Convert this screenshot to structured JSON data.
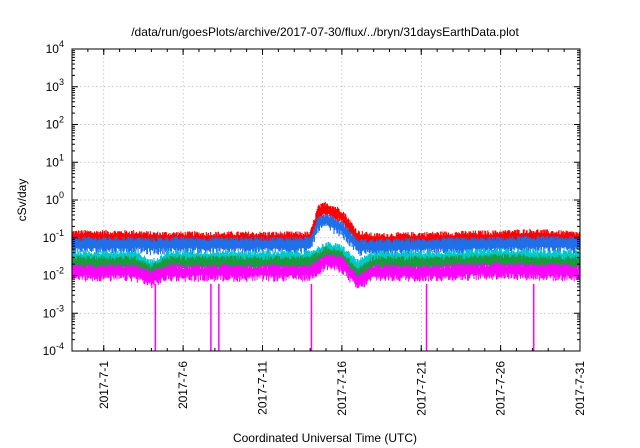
{
  "chart_data": {
    "type": "line",
    "title": "/data/run/goesPlots/archive/2017-07-30/flux/../bryn/31daysEarthData.plot",
    "xlabel": "Coordinated Universal Time (UTC)",
    "ylabel": "cSv/day",
    "x_type": "date",
    "xlim": [
      "2017-06-29",
      "2017-07-31"
    ],
    "ylim": [
      0.0001,
      10000
    ],
    "yscale": "log",
    "grid": true,
    "legend": "none",
    "x_ticks": [
      {
        "date": "2017-07-01",
        "label": "2017-7-1"
      },
      {
        "date": "2017-07-06",
        "label": "2017-7-6"
      },
      {
        "date": "2017-07-11",
        "label": "2017-7-11"
      },
      {
        "date": "2017-07-16",
        "label": "2017-7-16"
      },
      {
        "date": "2017-07-21",
        "label": "2017-7-21"
      },
      {
        "date": "2017-07-26",
        "label": "2017-7-26"
      },
      {
        "date": "2017-07-31",
        "label": "2017-7-31"
      }
    ],
    "y_ticks": [
      {
        "value": 0.0001,
        "base": "10",
        "exp": "-4"
      },
      {
        "value": 0.001,
        "base": "10",
        "exp": "-3"
      },
      {
        "value": 0.01,
        "base": "10",
        "exp": "-2"
      },
      {
        "value": 0.1,
        "base": "10",
        "exp": "-1"
      },
      {
        "value": 1,
        "base": "10",
        "exp": "0"
      },
      {
        "value": 10,
        "base": "10",
        "exp": "1"
      },
      {
        "value": 100,
        "base": "10",
        "exp": "2"
      },
      {
        "value": 1000,
        "base": "10",
        "exp": "3"
      },
      {
        "value": 10000,
        "base": "10",
        "exp": "4"
      }
    ],
    "series": [
      {
        "color": "#ff0000",
        "x": [
          "2017-06-29",
          "2017-07-03",
          "2017-07-04",
          "2017-07-05",
          "2017-07-14",
          "2017-07-14T12",
          "2017-07-15",
          "2017-07-16",
          "2017-07-17",
          "2017-07-18",
          "2017-07-22",
          "2017-07-26",
          "2017-07-28",
          "2017-07-31"
        ],
        "y": [
          0.12,
          0.12,
          0.11,
          0.11,
          0.11,
          0.55,
          0.7,
          0.45,
          0.12,
          0.1,
          0.11,
          0.12,
          0.13,
          0.11
        ]
      },
      {
        "color": "#1e6fe8",
        "x": [
          "2017-06-29",
          "2017-07-03",
          "2017-07-04",
          "2017-07-05",
          "2017-07-14",
          "2017-07-14T12",
          "2017-07-15",
          "2017-07-16",
          "2017-07-17",
          "2017-07-18",
          "2017-07-22",
          "2017-07-26",
          "2017-07-28",
          "2017-07-31"
        ],
        "y": [
          0.08,
          0.08,
          0.075,
          0.08,
          0.08,
          0.3,
          0.35,
          0.22,
          0.07,
          0.07,
          0.075,
          0.08,
          0.085,
          0.08
        ]
      },
      {
        "color": "#00c8c8",
        "x": [
          "2017-06-29",
          "2017-07-03",
          "2017-07-04",
          "2017-07-05",
          "2017-07-14",
          "2017-07-15",
          "2017-07-16",
          "2017-07-17",
          "2017-07-18",
          "2017-07-22",
          "2017-07-26",
          "2017-07-31"
        ],
        "y": [
          0.035,
          0.035,
          0.02,
          0.035,
          0.035,
          0.06,
          0.05,
          0.02,
          0.035,
          0.035,
          0.04,
          0.035
        ]
      },
      {
        "color": "#1a9a3a",
        "x": [
          "2017-06-29",
          "2017-07-03",
          "2017-07-04",
          "2017-07-05",
          "2017-07-14",
          "2017-07-15",
          "2017-07-16",
          "2017-07-17",
          "2017-07-18",
          "2017-07-22",
          "2017-07-26",
          "2017-07-31"
        ],
        "y": [
          0.025,
          0.025,
          0.015,
          0.025,
          0.025,
          0.045,
          0.035,
          0.012,
          0.025,
          0.025,
          0.028,
          0.025
        ]
      },
      {
        "color": "#ff00ff",
        "x": [
          "2017-06-29",
          "2017-07-03",
          "2017-07-04",
          "2017-07-05",
          "2017-07-14",
          "2017-07-15",
          "2017-07-16",
          "2017-07-17",
          "2017-07-18",
          "2017-07-22",
          "2017-07-26",
          "2017-07-31"
        ],
        "y": [
          0.015,
          0.015,
          0.01,
          0.015,
          0.015,
          0.03,
          0.025,
          0.008,
          0.015,
          0.015,
          0.017,
          0.015
        ]
      }
    ],
    "dropouts": [
      {
        "x": "2017-07-04T06",
        "y_min": 0.0001
      },
      {
        "x": "2017-07-07T18",
        "y_min": 0.0001
      },
      {
        "x": "2017-07-08T06",
        "y_min": 0.0001
      },
      {
        "x": "2017-07-14T02",
        "y_min": 0.0001
      },
      {
        "x": "2017-07-21T08",
        "y_min": 0.0001
      },
      {
        "x": "2017-07-28T02",
        "y_min": 0.0001
      }
    ]
  }
}
